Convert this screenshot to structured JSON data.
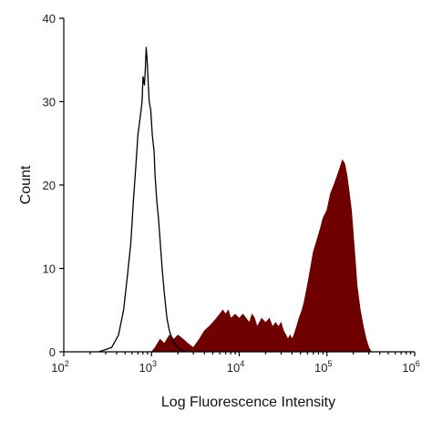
{
  "chart_data": {
    "type": "area",
    "title": "",
    "xlabel": "Log Fluorescence Intensity",
    "ylabel": "Count",
    "x_scale": "log",
    "xlim": [
      100,
      1000000
    ],
    "ylim": [
      0,
      40
    ],
    "x_ticks": [
      {
        "value": 100,
        "base": "10",
        "exp": "2"
      },
      {
        "value": 1000,
        "base": "10",
        "exp": "3"
      },
      {
        "value": 10000,
        "base": "10",
        "exp": "4"
      },
      {
        "value": 100000,
        "base": "10",
        "exp": "5"
      },
      {
        "value": 1000000,
        "base": "10",
        "exp": "6"
      }
    ],
    "y_ticks": [
      "0",
      "10",
      "20",
      "30",
      "40"
    ],
    "grid": false,
    "series": [
      {
        "role": "control",
        "style": "outline",
        "color": "#000000",
        "points": [
          [
            250,
            0
          ],
          [
            350,
            0.5
          ],
          [
            420,
            2
          ],
          [
            480,
            5
          ],
          [
            530,
            9
          ],
          [
            580,
            13
          ],
          [
            620,
            18
          ],
          [
            660,
            22
          ],
          [
            700,
            26
          ],
          [
            740,
            28
          ],
          [
            780,
            30
          ],
          [
            800,
            33
          ],
          [
            830,
            32
          ],
          [
            850,
            34
          ],
          [
            870,
            36.5
          ],
          [
            890,
            35
          ],
          [
            910,
            33
          ],
          [
            940,
            30
          ],
          [
            980,
            29
          ],
          [
            1020,
            26
          ],
          [
            1070,
            24
          ],
          [
            1100,
            21
          ],
          [
            1150,
            18
          ],
          [
            1200,
            16
          ],
          [
            1260,
            13
          ],
          [
            1320,
            10
          ],
          [
            1400,
            7
          ],
          [
            1500,
            4
          ],
          [
            1600,
            2.5
          ],
          [
            1800,
            1
          ],
          [
            2100,
            0.3
          ],
          [
            2500,
            0
          ]
        ]
      },
      {
        "role": "stained",
        "style": "filled",
        "color": "#6e0000",
        "points": [
          [
            1000,
            0
          ],
          [
            1100,
            0.5
          ],
          [
            1250,
            1.5
          ],
          [
            1400,
            1
          ],
          [
            1600,
            2
          ],
          [
            1800,
            1.5
          ],
          [
            2000,
            2
          ],
          [
            2300,
            1.5
          ],
          [
            2600,
            1
          ],
          [
            3000,
            0.5
          ],
          [
            3500,
            1.5
          ],
          [
            4000,
            2.5
          ],
          [
            4500,
            3
          ],
          [
            5000,
            3.5
          ],
          [
            5500,
            4
          ],
          [
            6000,
            4.5
          ],
          [
            6500,
            5
          ],
          [
            7000,
            4.5
          ],
          [
            7500,
            5
          ],
          [
            8000,
            4
          ],
          [
            9000,
            4.5
          ],
          [
            10000,
            4
          ],
          [
            11000,
            4.5
          ],
          [
            12000,
            4
          ],
          [
            13000,
            3.5
          ],
          [
            14000,
            4.5
          ],
          [
            15000,
            4
          ],
          [
            16000,
            3
          ],
          [
            18000,
            4
          ],
          [
            20000,
            3.5
          ],
          [
            22000,
            4
          ],
          [
            24000,
            3
          ],
          [
            26000,
            3.5
          ],
          [
            28000,
            3
          ],
          [
            30000,
            3.5
          ],
          [
            32000,
            2.5
          ],
          [
            34000,
            2
          ],
          [
            36000,
            1.5
          ],
          [
            38000,
            2
          ],
          [
            40000,
            1.5
          ],
          [
            42000,
            2
          ],
          [
            45000,
            3
          ],
          [
            48000,
            4
          ],
          [
            52000,
            5
          ],
          [
            55000,
            6
          ],
          [
            60000,
            8
          ],
          [
            65000,
            10
          ],
          [
            70000,
            12
          ],
          [
            75000,
            13
          ],
          [
            80000,
            14
          ],
          [
            85000,
            15
          ],
          [
            90000,
            16
          ],
          [
            100000,
            17
          ],
          [
            110000,
            19
          ],
          [
            120000,
            20
          ],
          [
            130000,
            21
          ],
          [
            140000,
            22
          ],
          [
            150000,
            23
          ],
          [
            160000,
            22.5
          ],
          [
            170000,
            21
          ],
          [
            180000,
            19
          ],
          [
            190000,
            17
          ],
          [
            200000,
            14
          ],
          [
            210000,
            11
          ],
          [
            220000,
            8
          ],
          [
            240000,
            5
          ],
          [
            260000,
            3
          ],
          [
            280000,
            1.5
          ],
          [
            300000,
            0.5
          ],
          [
            320000,
            0
          ]
        ]
      }
    ]
  }
}
